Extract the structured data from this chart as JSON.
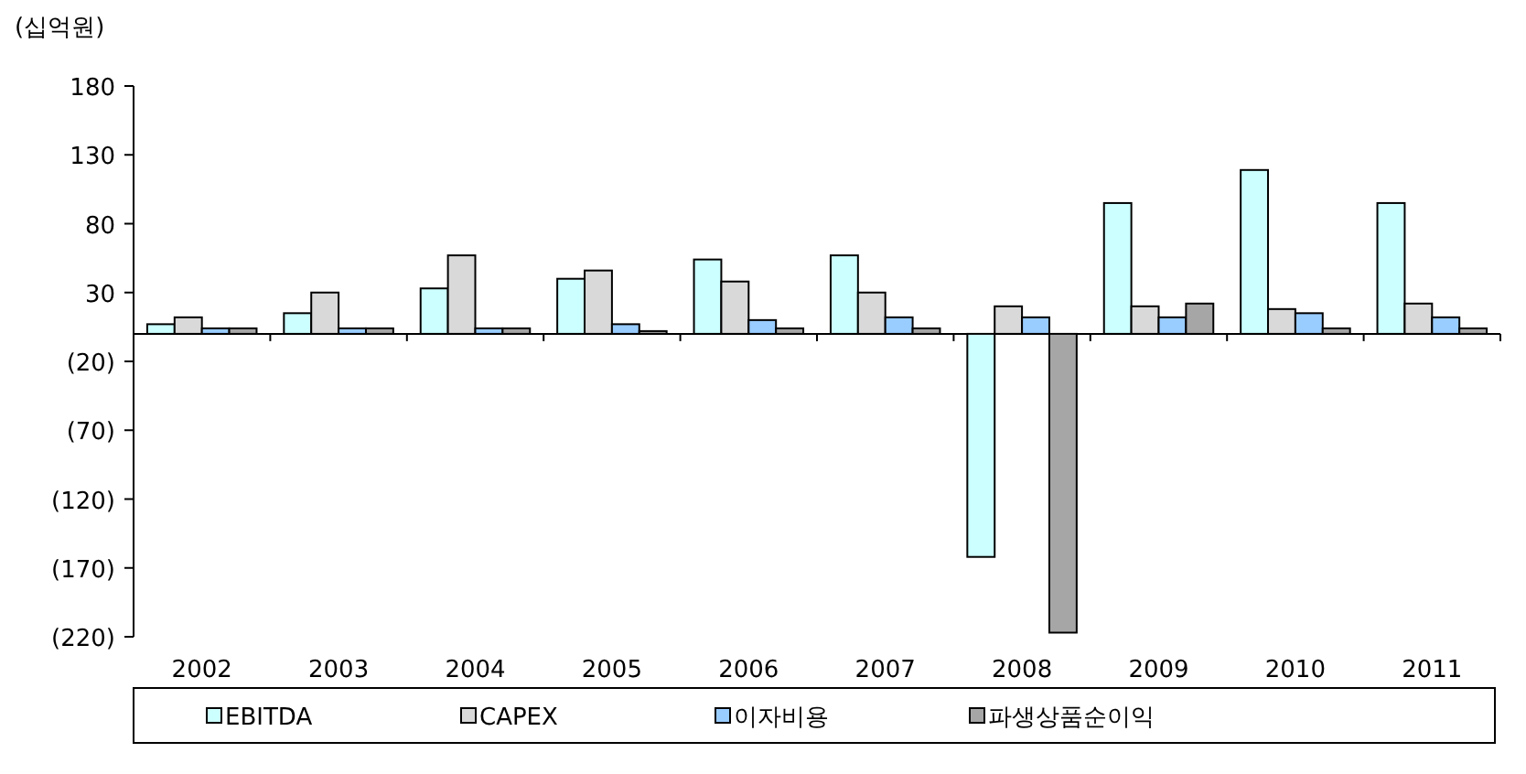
{
  "chart_data": {
    "type": "bar",
    "ylabel": "(십억원)",
    "categories": [
      "2002",
      "2003",
      "2004",
      "2005",
      "2006",
      "2007",
      "2008",
      "2009",
      "2010",
      "2011"
    ],
    "series": [
      {
        "name": "EBITDA",
        "color": "#ccffff",
        "values": [
          7,
          15,
          33,
          40,
          54,
          57,
          -162,
          95,
          119,
          95
        ]
      },
      {
        "name": "CAPEX",
        "color": "#d9d9d9",
        "values": [
          12,
          30,
          57,
          46,
          38,
          30,
          20,
          20,
          18,
          22
        ]
      },
      {
        "name": "이자비용",
        "color": "#99ccff",
        "values": [
          4,
          4,
          4,
          7,
          10,
          12,
          12,
          12,
          15,
          12
        ]
      },
      {
        "name": "파생상품순이익",
        "color": "#a6a6a6",
        "values": [
          4,
          4,
          4,
          2,
          4,
          4,
          -217,
          22,
          4,
          4
        ]
      }
    ],
    "ylim": [
      -220,
      180
    ],
    "yticks": [
      180,
      130,
      80,
      30,
      {
        "value": -20,
        "label": "(20)"
      },
      {
        "value": -70,
        "label": "(70)"
      },
      {
        "value": -120,
        "label": "(120)"
      },
      {
        "value": -170,
        "label": "(170)"
      },
      {
        "value": -220,
        "label": "(220)"
      }
    ],
    "grid": false,
    "legend": "bottom"
  }
}
